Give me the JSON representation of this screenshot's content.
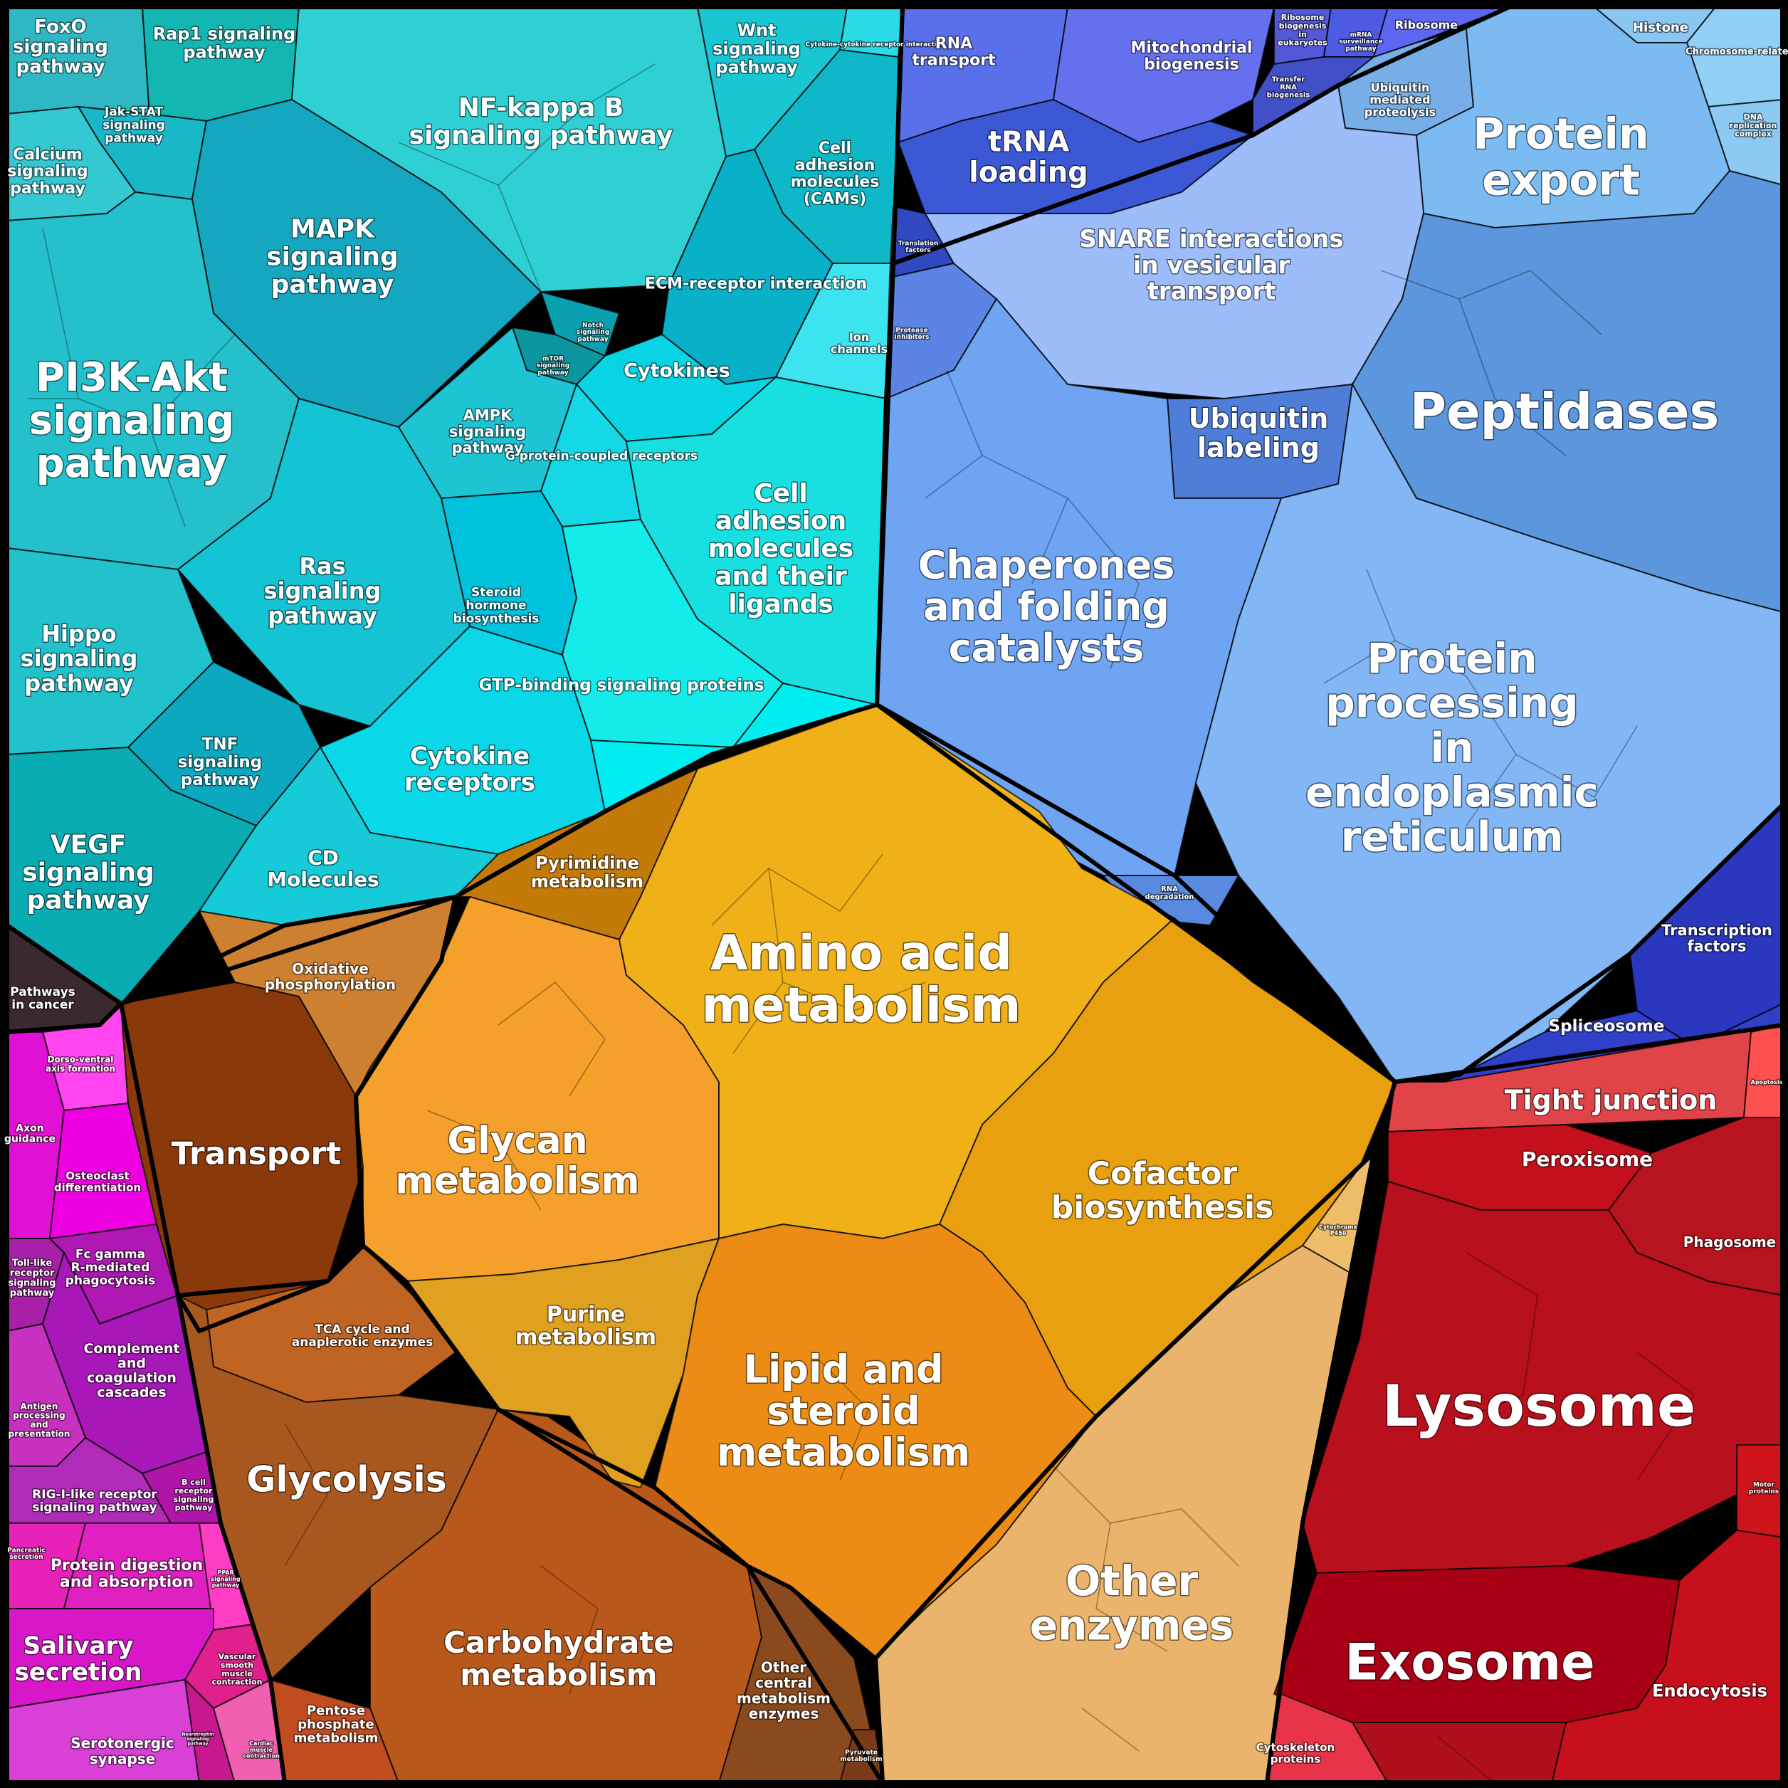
{
  "colors": {
    "signaling": "#1ec4d0",
    "genetic_info": "#4a5fe0",
    "protein_processing": "#6fa6f2",
    "metabolism_core": "#f3a818",
    "metabolism_brown": "#b25a18",
    "cellular_red": "#c8141e",
    "immune_magenta": "#d818c8",
    "other_enzymes": "#eab46c",
    "pathways_cancer": "#3a2a30"
  },
  "regions": {
    "pi3k": "PI3K-Akt signaling pathway",
    "mapk": "MAPK signaling pathway",
    "nfkb": "NF-kappa B signaling pathway",
    "foxo": "FoxO signaling pathway",
    "rap1": "Rap1 signaling pathway",
    "wnt": "Wnt signaling pathway",
    "cytokine_interaction": "Cytokine-cytokine receptor interaction",
    "jak_stat": "Jak-STAT signaling pathway",
    "calcium": "Calcium signaling pathway",
    "cams": "Cell adhesion molecules (CAMs)",
    "ecm": "ECM-receptor interaction",
    "ion_channels": "Ion channels",
    "notch": "Notch signaling pathway",
    "mtor": "mTOR signaling pathway",
    "ampk": "AMPK signaling pathway",
    "cytokines": "Cytokines",
    "gpcr": "G protein-coupled receptors",
    "cell_adhesion_ligands": "Cell adhesion molecules and their ligands",
    "ras": "Ras signaling pathway",
    "hippo": "Hippo signaling pathway",
    "steroid_hormone": "Steroid hormone biosynthesis",
    "gtp_binding": "GTP-binding signaling proteins",
    "tnf": "TNF signaling pathway",
    "cytokine_receptors": "Cytokine receptors",
    "vegf": "VEGF signaling pathway",
    "cd_molecules": "CD Molecules",
    "pathways_cancer": "Pathways in cancer",
    "rna_transport": "RNA transport",
    "mito_biogenesis": "Mitochondrial biogenesis",
    "ribosome_biogenesis": "Ribosome biogenesis in eukaryotes",
    "mrna_surveillance": "mRNA surveillance pathway",
    "ribosome": "Ribosome",
    "histone": "Histone",
    "chromosome": "Chromosome-related",
    "dna_replication": "DNA replication complex",
    "transfer_rna_biogenesis": "Transfer RNA biogenesis",
    "trna_loading": "tRNA loading",
    "ubiquitin_proteolysis": "Ubiquitin mediated proteolysis",
    "protein_export": "Protein export",
    "translation_factors": "Translation factors",
    "snare": "SNARE interactions in vesicular transport",
    "protease_inhibitors": "Protease inhibitors",
    "peptidases": "Peptidases",
    "ubiquitin_labeling": "Ubiquitin labeling",
    "chaperones": "Chaperones and folding catalysts",
    "protein_processing_er": "Protein processing in endoplasmic reticulum",
    "rna_degradation": "RNA degradation",
    "transcription_factors": "Transcription factors",
    "spliceosome": "Spliceosome",
    "pyrimidine": "Pyrimidine metabolism",
    "amino_acid": "Amino acid metabolism",
    "oxidative_phos": "Oxidative phosphorylation",
    "transport": "Transport",
    "glycan": "Glycan metabolism",
    "cofactor": "Cofactor biosynthesis",
    "cytochrome_p450": "Cytochrome P450",
    "tca": "TCA cycle and anaplerotic enzymes",
    "purine": "Purine metabolism",
    "lipid": "Lipid and steroid metabolism",
    "glycolysis": "Glycolysis",
    "other_enzymes": "Other enzymes",
    "carbohydrate": "Carbohydrate metabolism",
    "other_central": "Other central metabolism enzymes",
    "pentose": "Pentose phosphate metabolism",
    "pyruvate": "Pyruvate metabolism",
    "tight_junction": "Tight junction",
    "apoptosis": "Apoptosis",
    "peroxisome": "Peroxisome",
    "phagosome": "Phagosome",
    "lysosome": "Lysosome",
    "motor_proteins": "Motor proteins",
    "exosome": "Exosome",
    "endocytosis": "Endocytosis",
    "cytoskeleton": "Cytoskeleton proteins",
    "dorso_ventral": "Dorso-ventral axis formation",
    "axon_guidance": "Axon guidance",
    "osteoclast": "Osteoclast differentiation",
    "toll_like": "Toll-like receptor signaling pathway",
    "fc_gamma": "Fc gamma R-mediated phagocytosis",
    "complement": "Complement and coagulation cascades",
    "antigen": "Antigen processing and presentation",
    "rig_i": "RIG-I-like receptor signaling pathway",
    "b_cell": "B cell receptor signaling pathway",
    "pancreatic": "Pancreatic secretion",
    "protein_digestion": "Protein digestion and absorption",
    "ppar": "PPAR signaling pathway",
    "salivary": "Salivary secretion",
    "vascular": "Vascular smooth muscle contraction",
    "serotonergic": "Serotonergic synapse",
    "neurotrophin": "Neurotrophin signaling pathway",
    "cardiac": "Cardiac muscle contraction"
  }
}
